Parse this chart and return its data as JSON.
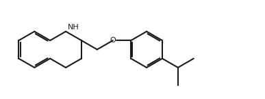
{
  "bg_color": "#ffffff",
  "line_color": "#1a1a1a",
  "line_width": 1.5,
  "text_color": "#1a1a1a",
  "nh_label": "NH",
  "o_label": "O",
  "fig_width": 3.87,
  "fig_height": 1.45,
  "dpi": 100,
  "xlim": [
    0,
    10.5
  ],
  "ylim": [
    0,
    3.8
  ]
}
